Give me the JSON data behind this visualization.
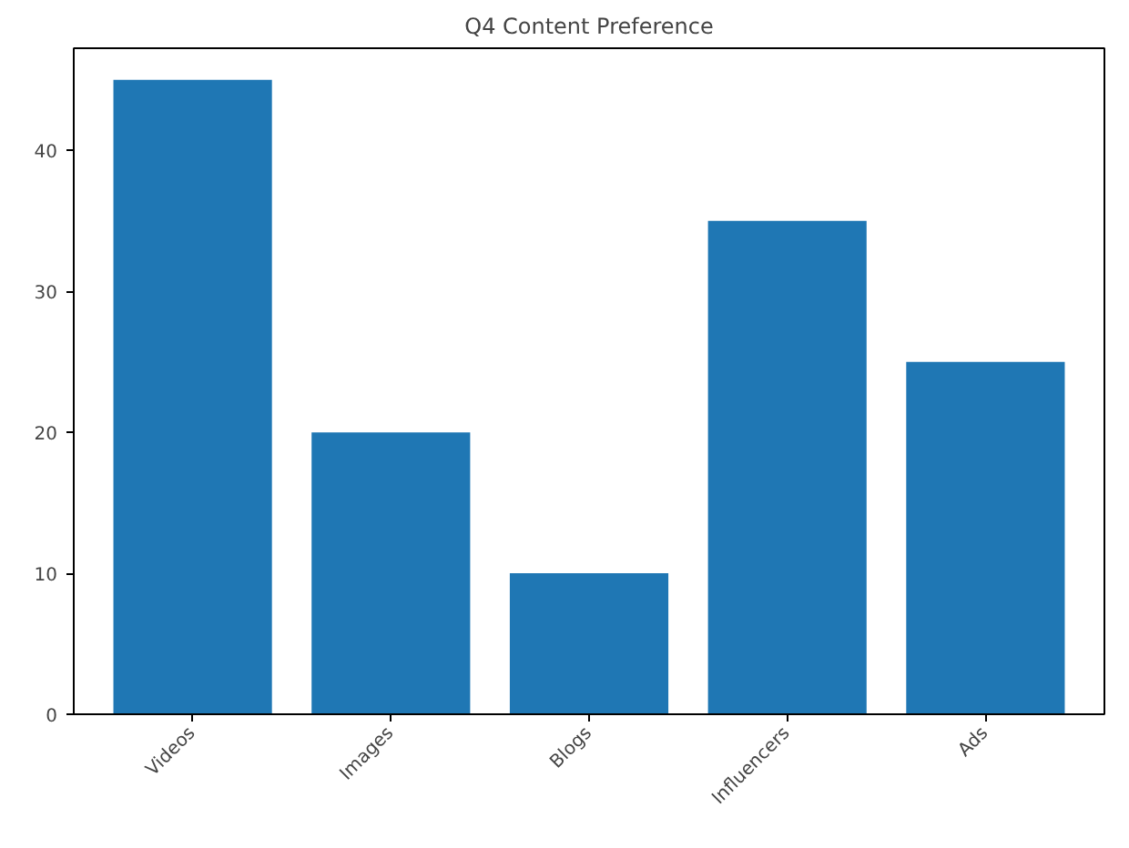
{
  "chart_data": {
    "type": "bar",
    "title": "Q4 Content Preference",
    "categories": [
      "Videos",
      "Images",
      "Blogs",
      "Influencers",
      "Ads"
    ],
    "values": [
      45,
      20,
      10,
      35,
      25
    ],
    "color": "#1f77b4",
    "ylim": [
      0,
      47.25
    ],
    "yticks": [
      0,
      10,
      20,
      30,
      40
    ],
    "grid": false
  }
}
